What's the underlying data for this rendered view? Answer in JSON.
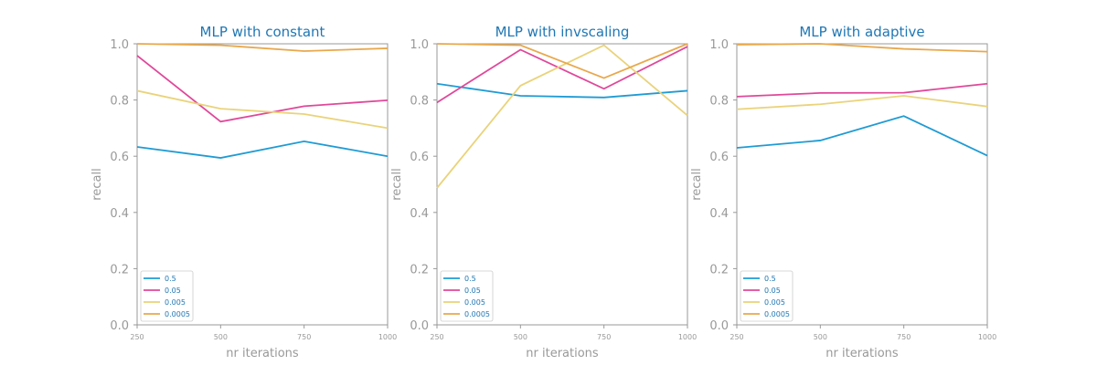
{
  "chart_data": [
    {
      "type": "line",
      "title": "MLP with constant",
      "xlabel": "nr iterations",
      "ylabel": "recall",
      "x": [
        250,
        500,
        750,
        1000
      ],
      "ylim": [
        0.0,
        1.0
      ],
      "yticks": [
        "0.0",
        "0.2",
        "0.4",
        "0.6",
        "0.8",
        "1.0"
      ],
      "xticks": [
        "250",
        "500",
        "750",
        "1000"
      ],
      "legend_position": "lower-left",
      "series": [
        {
          "name": "0.5",
          "color": "#1f9bd4",
          "values": [
            0.633,
            0.594,
            0.653,
            0.6
          ]
        },
        {
          "name": "0.05",
          "color": "#e0489a",
          "values": [
            0.958,
            0.723,
            0.778,
            0.799
          ]
        },
        {
          "name": "0.005",
          "color": "#ead37a",
          "values": [
            0.833,
            0.769,
            0.75,
            0.7
          ]
        },
        {
          "name": "0.0005",
          "color": "#e8a84c",
          "values": [
            1.0,
            0.995,
            0.974,
            0.984
          ]
        }
      ]
    },
    {
      "type": "line",
      "title": "MLP with invscaling",
      "xlabel": "nr iterations",
      "ylabel": "recall",
      "x": [
        250,
        500,
        750,
        1000
      ],
      "ylim": [
        0.0,
        1.0
      ],
      "yticks": [
        "0.0",
        "0.2",
        "0.4",
        "0.6",
        "0.8",
        "1.0"
      ],
      "xticks": [
        "250",
        "500",
        "750",
        "1000"
      ],
      "legend_position": "lower-left",
      "series": [
        {
          "name": "0.5",
          "color": "#1f9bd4",
          "values": [
            0.858,
            0.815,
            0.809,
            0.833
          ]
        },
        {
          "name": "0.05",
          "color": "#e0489a",
          "values": [
            0.791,
            0.979,
            0.84,
            0.99
          ]
        },
        {
          "name": "0.005",
          "color": "#ead37a",
          "values": [
            0.487,
            0.851,
            0.995,
            0.745
          ]
        },
        {
          "name": "0.0005",
          "color": "#e8a84c",
          "values": [
            1.0,
            0.995,
            0.878,
            1.0
          ]
        }
      ]
    },
    {
      "type": "line",
      "title": "MLP with adaptive",
      "xlabel": "nr iterations",
      "ylabel": "recall",
      "x": [
        250,
        500,
        750,
        1000
      ],
      "ylim": [
        0.0,
        1.0
      ],
      "yticks": [
        "0.0",
        "0.2",
        "0.4",
        "0.6",
        "0.8",
        "1.0"
      ],
      "xticks": [
        "250",
        "500",
        "750",
        "1000"
      ],
      "legend_position": "lower-left",
      "series": [
        {
          "name": "0.5",
          "color": "#1f9bd4",
          "values": [
            0.63,
            0.656,
            0.743,
            0.602
          ]
        },
        {
          "name": "0.05",
          "color": "#e0489a",
          "values": [
            0.812,
            0.825,
            0.826,
            0.858
          ]
        },
        {
          "name": "0.005",
          "color": "#ead37a",
          "values": [
            0.767,
            0.785,
            0.815,
            0.777
          ]
        },
        {
          "name": "0.0005",
          "color": "#e8a84c",
          "values": [
            0.997,
            1.0,
            0.982,
            0.972
          ]
        }
      ]
    }
  ]
}
